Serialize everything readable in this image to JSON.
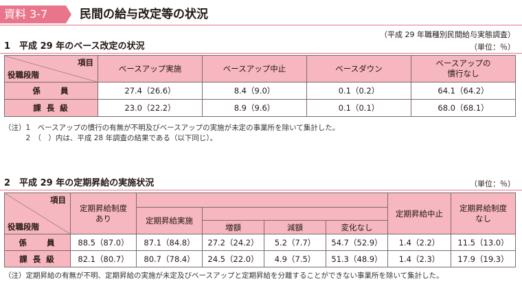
{
  "header": {
    "badge": "資料 3-7",
    "title": "民間の給与改定等の状況",
    "source": "（平成 29 年職種別民間給与実態調査）"
  },
  "section1": {
    "heading": "1　平成 29 年のベース改定の状況",
    "unit": "（単位：％）",
    "corner_top": "項目",
    "corner_bottom": "役職段階",
    "columns": [
      "ベースアップ実施",
      "ベースアップ中止",
      "ベースダウン",
      "ベースアップの慣行なし"
    ],
    "rows": [
      {
        "label": "係　　員",
        "cells": [
          "27.4（26.6）",
          "8.4（9.0）",
          "0.1（0.2）",
          "64.1（64.2）"
        ]
      },
      {
        "label": "課 長 級",
        "cells": [
          "23.0（22.2）",
          "8.9（9.6）",
          "0.1（0.1）",
          "68.0（68.1）"
        ]
      }
    ],
    "notes": [
      "（注）1　ベースアップの慣行の有無が不明及びベースアップの実施が未定の事業所を除いて集計した。",
      "　　　2　（　）内は、平成 28 年調査の結果である（以下同じ）。"
    ]
  },
  "section2": {
    "heading": "2　平成 29 年の定期昇給の実施状況",
    "unit": "（単位：％）",
    "corner_top": "項目",
    "corner_bottom": "役職段階",
    "col_exists": "定期昇給制度あり",
    "col_implemented": "定期昇給実施",
    "col_increase": "増額",
    "col_decrease": "減額",
    "col_nochange": "変化なし",
    "col_stopped": "定期昇給中止",
    "col_none": "定期昇給制度なし",
    "rows": [
      {
        "label": "係　　員",
        "cells": [
          "88.5（87.0）",
          "87.1（84.8）",
          "27.2（24.2）",
          "5.2（7.7）",
          "54.7（52.9）",
          "1.4（2.2）",
          "11.5（13.0）"
        ]
      },
      {
        "label": "課 長 級",
        "cells": [
          "82.1（80.7）",
          "80.7（78.4）",
          "24.5（22.0）",
          "4.9（7.5）",
          "51.3（48.9）",
          "1.4（2.3）",
          "17.9（19.3）"
        ]
      }
    ],
    "note": "（注）定期昇給の有無が不明、定期昇給の実施が未定及びベースアップと定期昇給を分離することができない事業所を除いて集計した。"
  }
}
